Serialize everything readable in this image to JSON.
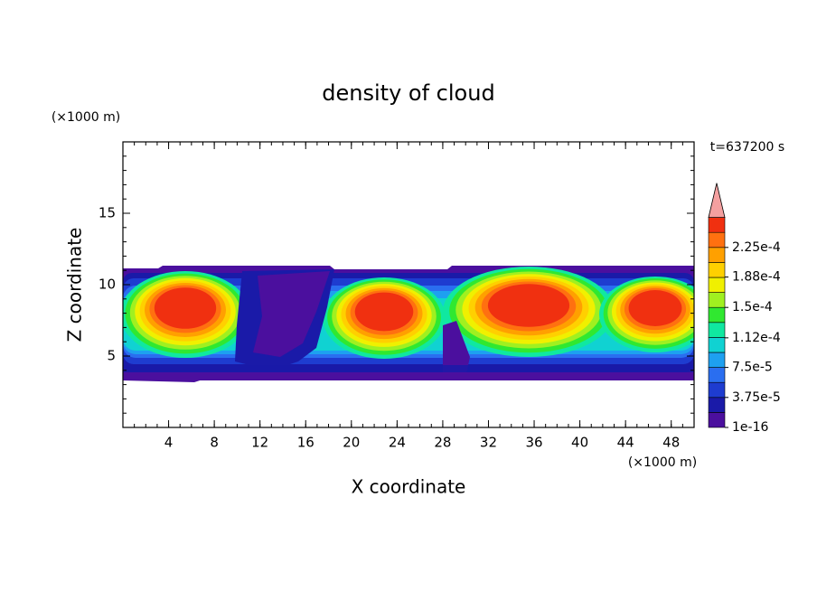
{
  "chart_data": {
    "type": "contour",
    "title": "density of cloud",
    "x_label": "X coordinate",
    "y_label": "Z coordinate",
    "x_unit": "(×1000 m)",
    "y_unit": "(×1000 m)",
    "annotation": "t=637200 s",
    "xlim": [
      0,
      50
    ],
    "ylim": [
      0,
      20
    ],
    "xticks": [
      4,
      8,
      12,
      16,
      20,
      24,
      28,
      32,
      36,
      40,
      44,
      48
    ],
    "yticks": [
      5,
      10,
      15
    ],
    "colorbar_ticks": [
      {
        "value": 1e-16,
        "label": "1e-16"
      },
      {
        "value": 3.75e-05,
        "label": "3.75e-5"
      },
      {
        "value": 7.5e-05,
        "label": "7.5e-5"
      },
      {
        "value": 0.000112,
        "label": "1.12e-4"
      },
      {
        "value": 0.00015,
        "label": "1.5e-4"
      },
      {
        "value": 0.000188,
        "label": "1.88e-4"
      },
      {
        "value": 0.000225,
        "label": "2.25e-4"
      }
    ],
    "colors": [
      "#4b0f9e",
      "#1a1aa8",
      "#1e3cd0",
      "#2a6ef0",
      "#1ea0f0",
      "#10d2d2",
      "#10e8a0",
      "#30e830",
      "#a0f020",
      "#f0f000",
      "#ffd000",
      "#ffa000",
      "#ff7010",
      "#f03010"
    ],
    "extend_color": "#f4a0a0"
  }
}
